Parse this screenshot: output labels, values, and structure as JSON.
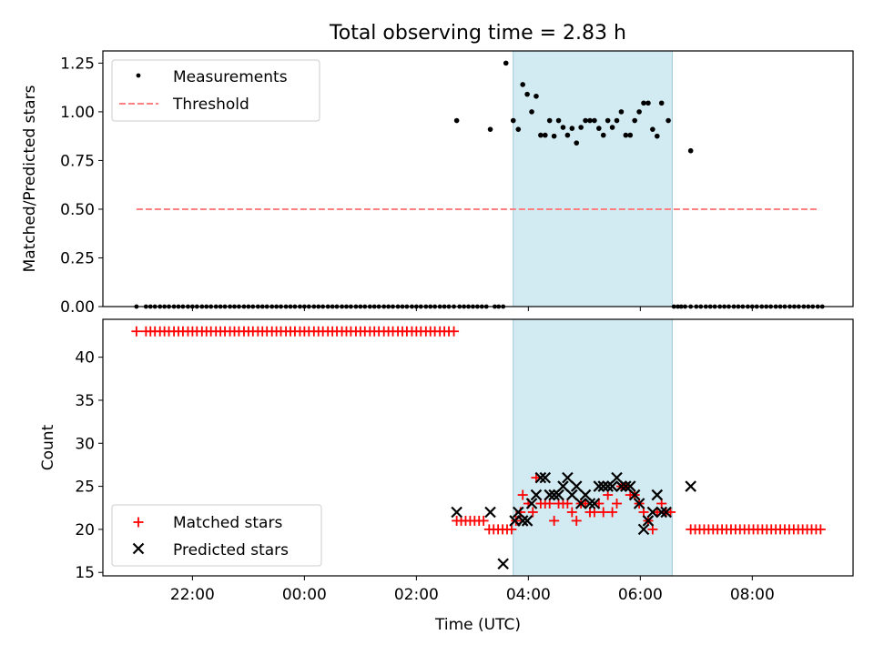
{
  "figure": {
    "title": "Total observing time = 2.83 h",
    "xlabel": "Time (UTC)",
    "x_tick_labels": [
      "22:00",
      "00:00",
      "02:00",
      "04:00",
      "06:00",
      "08:00"
    ],
    "x_tick_hours": [
      22,
      24,
      26,
      28,
      30,
      32
    ],
    "xlim_hours": [
      20.4,
      33.8
    ],
    "shaded_interval_hours": [
      27.73,
      30.57
    ],
    "shade_color": "#add8e6"
  },
  "chart_data": [
    {
      "type": "scatter",
      "ylabel": "Matched/Predicted stars",
      "ylim": [
        0,
        1.3125
      ],
      "y_ticks": [
        0.0,
        0.25,
        0.5,
        0.75,
        1.0,
        1.25
      ],
      "y_tick_labels": [
        "0.00",
        "0.25",
        "0.50",
        "0.75",
        "1.00",
        "1.25"
      ],
      "legend_position": "upper-left",
      "series": [
        {
          "name": "Measurements",
          "kind": "points",
          "color": "#000000",
          "zero_points_x_hours": [
            21.0,
            21.17,
            21.25,
            21.33,
            21.42,
            21.5,
            21.58,
            21.67,
            21.75,
            21.83,
            21.92,
            22.0,
            22.08,
            22.17,
            22.25,
            22.33,
            22.42,
            22.5,
            22.58,
            22.67,
            22.75,
            22.83,
            22.92,
            23.0,
            23.08,
            23.17,
            23.25,
            23.33,
            23.42,
            23.5,
            23.58,
            23.67,
            23.75,
            23.83,
            23.92,
            24.0,
            24.08,
            24.17,
            24.25,
            24.33,
            24.42,
            24.5,
            24.58,
            24.67,
            24.75,
            24.83,
            24.92,
            25.0,
            25.08,
            25.17,
            25.25,
            25.33,
            25.42,
            25.5,
            25.58,
            25.67,
            25.75,
            25.83,
            25.92,
            26.0,
            26.08,
            26.17,
            26.25,
            26.33,
            26.42,
            26.5,
            26.58,
            26.67,
            26.77,
            26.85,
            26.93,
            27.01,
            27.09,
            27.17,
            27.25,
            27.4,
            27.47,
            27.55,
            30.6,
            30.67,
            30.73,
            30.8,
            30.9,
            31.0,
            31.08,
            31.17,
            31.25,
            31.33,
            31.42,
            31.5,
            31.58,
            31.67,
            31.75,
            31.83,
            31.92,
            32.0,
            32.08,
            32.17,
            32.25,
            32.33,
            32.42,
            32.5,
            32.58,
            32.67,
            32.75,
            32.83,
            32.92,
            33.0,
            33.08,
            33.17,
            33.25
          ],
          "points": [
            {
              "x": 26.72,
              "y": 0.955
            },
            {
              "x": 27.32,
              "y": 0.91
            },
            {
              "x": 27.6,
              "y": 1.25
            },
            {
              "x": 27.73,
              "y": 0.955
            },
            {
              "x": 27.82,
              "y": 0.91
            },
            {
              "x": 27.9,
              "y": 1.14
            },
            {
              "x": 27.98,
              "y": 1.09
            },
            {
              "x": 28.06,
              "y": 1.0
            },
            {
              "x": 28.14,
              "y": 1.08
            },
            {
              "x": 28.22,
              "y": 0.88
            },
            {
              "x": 28.3,
              "y": 0.88
            },
            {
              "x": 28.38,
              "y": 0.955
            },
            {
              "x": 28.46,
              "y": 0.875
            },
            {
              "x": 28.54,
              "y": 0.955
            },
            {
              "x": 28.62,
              "y": 0.92
            },
            {
              "x": 28.7,
              "y": 0.88
            },
            {
              "x": 28.78,
              "y": 0.915
            },
            {
              "x": 28.86,
              "y": 0.84
            },
            {
              "x": 28.94,
              "y": 0.92
            },
            {
              "x": 29.02,
              "y": 0.955
            },
            {
              "x": 29.1,
              "y": 0.955
            },
            {
              "x": 29.18,
              "y": 0.955
            },
            {
              "x": 29.26,
              "y": 0.915
            },
            {
              "x": 29.34,
              "y": 0.88
            },
            {
              "x": 29.42,
              "y": 0.955
            },
            {
              "x": 29.5,
              "y": 0.92
            },
            {
              "x": 29.58,
              "y": 0.955
            },
            {
              "x": 29.66,
              "y": 1.0
            },
            {
              "x": 29.74,
              "y": 0.88
            },
            {
              "x": 29.82,
              "y": 0.88
            },
            {
              "x": 29.9,
              "y": 0.955
            },
            {
              "x": 29.98,
              "y": 1.0
            },
            {
              "x": 30.06,
              "y": 1.045
            },
            {
              "x": 30.14,
              "y": 1.045
            },
            {
              "x": 30.22,
              "y": 0.91
            },
            {
              "x": 30.3,
              "y": 0.875
            },
            {
              "x": 30.38,
              "y": 1.045
            },
            {
              "x": 30.5,
              "y": 0.955
            },
            {
              "x": 30.9,
              "y": 0.8
            }
          ]
        },
        {
          "name": "Threshold",
          "kind": "line",
          "color": "#ff8080",
          "dashed": true,
          "x_hours": [
            21.0,
            33.2
          ],
          "y": [
            0.5,
            0.5
          ]
        }
      ]
    },
    {
      "type": "scatter",
      "ylabel": "Count",
      "ylim": [
        14.6,
        44.4
      ],
      "y_ticks": [
        15,
        20,
        25,
        30,
        35,
        40
      ],
      "y_tick_labels": [
        "15",
        "20",
        "25",
        "30",
        "35",
        "40"
      ],
      "legend_position": "lower-left",
      "series": [
        {
          "name": "Matched stars",
          "marker": "plus",
          "color": "#ff0000",
          "constant_runs": [
            {
              "y": 43,
              "x_hours": [
                21.0,
                21.17,
                21.25,
                21.33,
                21.42,
                21.5,
                21.58,
                21.67,
                21.75,
                21.83,
                21.92,
                22.0,
                22.08,
                22.17,
                22.25,
                22.33,
                22.42,
                22.5,
                22.58,
                22.67,
                22.75,
                22.83,
                22.92,
                23.0,
                23.08,
                23.17,
                23.25,
                23.33,
                23.42,
                23.5,
                23.58,
                23.67,
                23.75,
                23.83,
                23.92,
                24.0,
                24.08,
                24.17,
                24.25,
                24.33,
                24.42,
                24.5,
                24.58,
                24.67,
                24.75,
                24.83,
                24.92,
                25.0,
                25.08,
                25.17,
                25.25,
                25.33,
                25.42,
                25.5,
                25.58,
                25.67,
                25.75,
                25.83,
                25.92,
                26.0,
                26.08,
                26.17,
                26.25,
                26.33,
                26.42,
                26.5,
                26.58,
                26.67
              ]
            },
            {
              "y": 21,
              "x_hours": [
                26.72,
                26.8,
                26.88,
                26.96,
                27.04,
                27.12,
                27.2
              ]
            },
            {
              "y": 20,
              "x_hours": [
                27.3,
                27.38,
                27.46,
                27.54,
                27.62,
                27.7
              ]
            },
            {
              "y": 20,
              "x_hours": [
                30.9,
                30.98,
                31.06,
                31.14,
                31.22,
                31.3,
                31.38,
                31.46,
                31.54,
                31.62,
                31.7,
                31.78,
                31.86,
                31.94,
                32.02,
                32.1,
                32.18,
                32.26,
                32.34,
                32.42,
                32.5,
                32.58,
                32.66,
                32.74,
                32.82,
                32.9,
                32.98,
                33.06,
                33.14,
                33.22
              ]
            }
          ],
          "points": [
            {
              "x": 27.78,
              "y": 21
            },
            {
              "x": 27.86,
              "y": 22
            },
            {
              "x": 27.9,
              "y": 24
            },
            {
              "x": 28.0,
              "y": 23
            },
            {
              "x": 28.08,
              "y": 22
            },
            {
              "x": 28.14,
              "y": 26
            },
            {
              "x": 28.22,
              "y": 23
            },
            {
              "x": 28.3,
              "y": 23
            },
            {
              "x": 28.38,
              "y": 23
            },
            {
              "x": 28.46,
              "y": 21
            },
            {
              "x": 28.54,
              "y": 23
            },
            {
              "x": 28.62,
              "y": 23
            },
            {
              "x": 28.7,
              "y": 23
            },
            {
              "x": 28.78,
              "y": 22
            },
            {
              "x": 28.86,
              "y": 21
            },
            {
              "x": 28.94,
              "y": 23
            },
            {
              "x": 29.02,
              "y": 23
            },
            {
              "x": 29.1,
              "y": 22
            },
            {
              "x": 29.18,
              "y": 22
            },
            {
              "x": 29.26,
              "y": 23
            },
            {
              "x": 29.34,
              "y": 22
            },
            {
              "x": 29.42,
              "y": 24
            },
            {
              "x": 29.5,
              "y": 22
            },
            {
              "x": 29.58,
              "y": 23
            },
            {
              "x": 29.66,
              "y": 25
            },
            {
              "x": 29.74,
              "y": 25
            },
            {
              "x": 29.82,
              "y": 24
            },
            {
              "x": 29.9,
              "y": 24
            },
            {
              "x": 29.98,
              "y": 23
            },
            {
              "x": 30.06,
              "y": 22
            },
            {
              "x": 30.14,
              "y": 21
            },
            {
              "x": 30.22,
              "y": 20
            },
            {
              "x": 30.3,
              "y": 22
            },
            {
              "x": 30.38,
              "y": 23
            },
            {
              "x": 30.46,
              "y": 22
            },
            {
              "x": 30.54,
              "y": 22
            }
          ]
        },
        {
          "name": "Predicted stars",
          "marker": "x",
          "color": "#000000",
          "constant_runs": [],
          "points": [
            {
              "x": 26.72,
              "y": 22
            },
            {
              "x": 27.32,
              "y": 22
            },
            {
              "x": 27.55,
              "y": 16
            },
            {
              "x": 27.76,
              "y": 21
            },
            {
              "x": 27.82,
              "y": 22
            },
            {
              "x": 27.9,
              "y": 21
            },
            {
              "x": 27.98,
              "y": 21
            },
            {
              "x": 28.06,
              "y": 23
            },
            {
              "x": 28.14,
              "y": 24
            },
            {
              "x": 28.22,
              "y": 26
            },
            {
              "x": 28.3,
              "y": 26
            },
            {
              "x": 28.38,
              "y": 24
            },
            {
              "x": 28.46,
              "y": 24
            },
            {
              "x": 28.54,
              "y": 24
            },
            {
              "x": 28.62,
              "y": 25
            },
            {
              "x": 28.7,
              "y": 26
            },
            {
              "x": 28.78,
              "y": 24
            },
            {
              "x": 28.86,
              "y": 25
            },
            {
              "x": 28.94,
              "y": 23
            },
            {
              "x": 29.02,
              "y": 24
            },
            {
              "x": 29.1,
              "y": 23
            },
            {
              "x": 29.18,
              "y": 23
            },
            {
              "x": 29.26,
              "y": 25
            },
            {
              "x": 29.34,
              "y": 25
            },
            {
              "x": 29.42,
              "y": 25
            },
            {
              "x": 29.5,
              "y": 25
            },
            {
              "x": 29.58,
              "y": 26
            },
            {
              "x": 29.66,
              "y": 25
            },
            {
              "x": 29.74,
              "y": 25
            },
            {
              "x": 29.82,
              "y": 25
            },
            {
              "x": 29.9,
              "y": 24
            },
            {
              "x": 29.98,
              "y": 23
            },
            {
              "x": 30.06,
              "y": 20
            },
            {
              "x": 30.14,
              "y": 21
            },
            {
              "x": 30.22,
              "y": 22
            },
            {
              "x": 30.3,
              "y": 24
            },
            {
              "x": 30.38,
              "y": 22
            },
            {
              "x": 30.46,
              "y": 22
            },
            {
              "x": 30.9,
              "y": 25
            }
          ]
        }
      ]
    }
  ]
}
